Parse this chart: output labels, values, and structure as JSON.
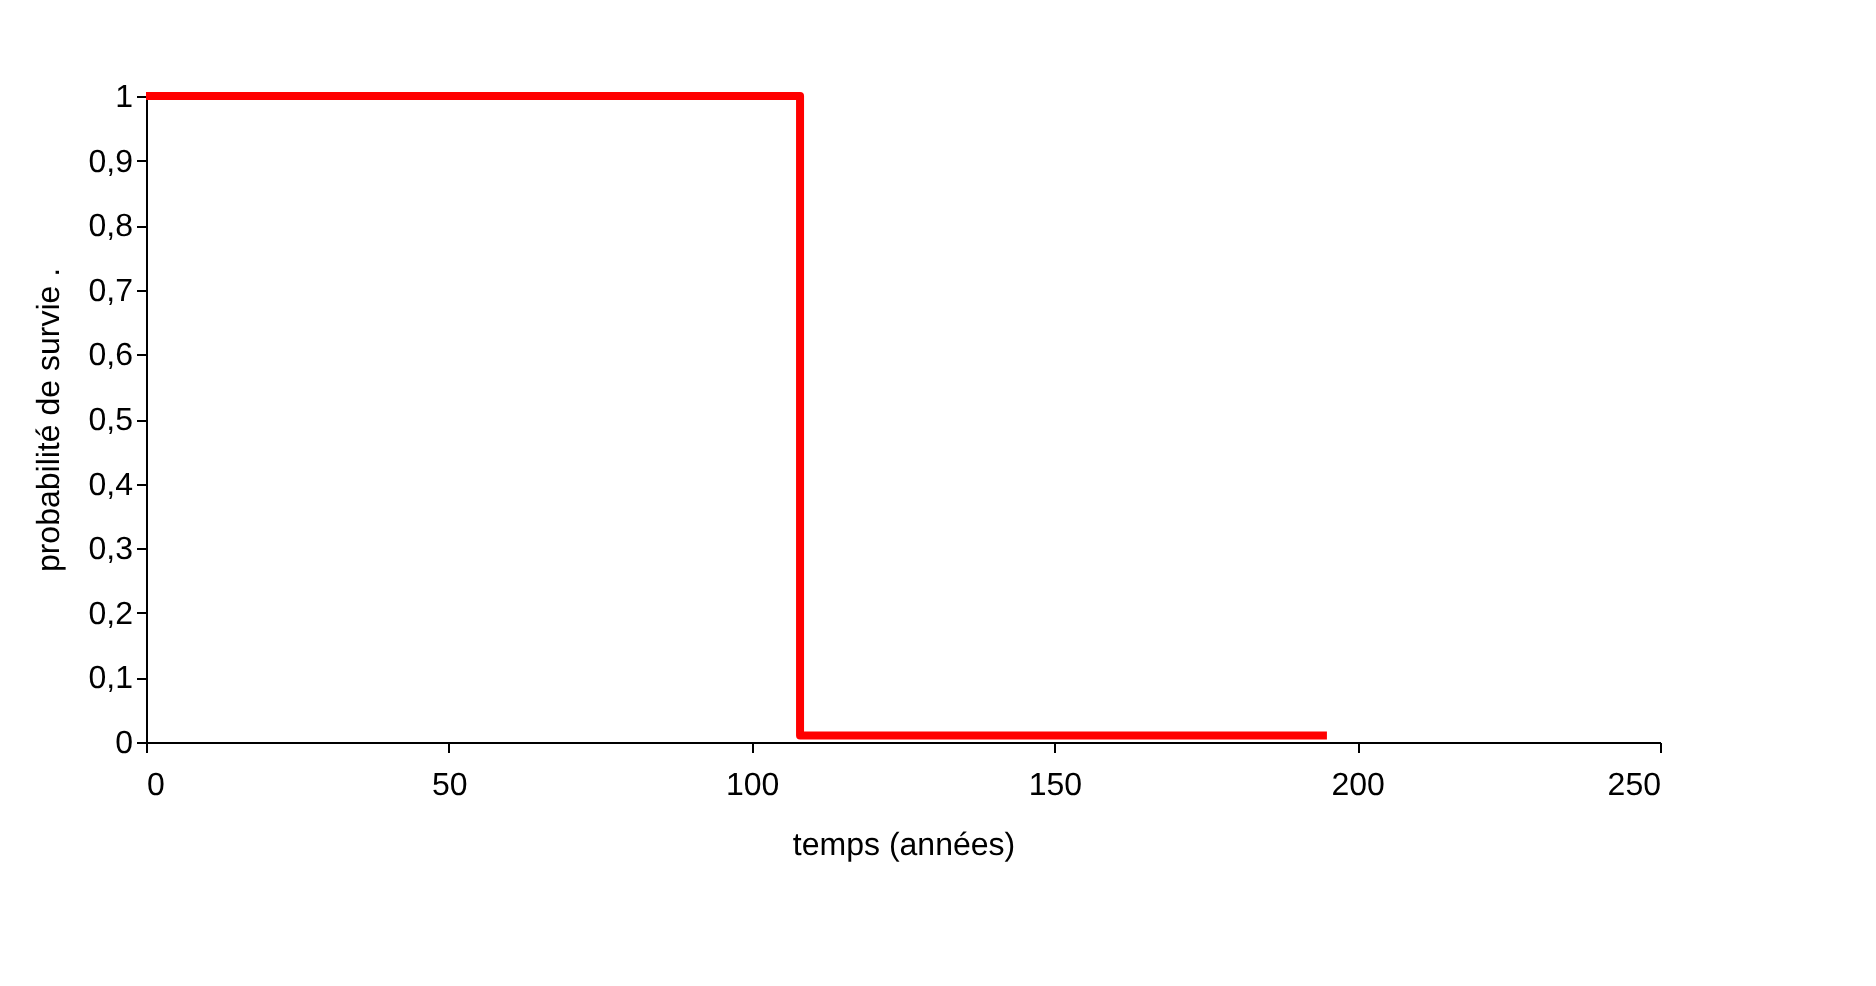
{
  "chart_data": {
    "type": "step",
    "xlabel": "temps (années)",
    "ylabel": "probabilité de survie  .",
    "series": [
      {
        "color": "#ff0000",
        "x": [
          0,
          108,
          195
        ],
        "values": [
          1,
          0.01,
          0.01
        ]
      }
    ],
    "xlim": [
      0,
      250
    ],
    "xticks": [
      0,
      50,
      100,
      150,
      200,
      250
    ],
    "ylim": [
      0,
      1
    ],
    "yticks": [
      0,
      {
        "value": 0.1,
        "label": "0,1"
      },
      {
        "value": 0.2,
        "label": "0,2"
      },
      {
        "value": 0.3,
        "label": "0,3"
      },
      {
        "value": 0.4,
        "label": "0,4"
      },
      {
        "value": 0.5,
        "label": "0,5"
      },
      {
        "value": 0.6,
        "label": "0,6"
      },
      {
        "value": 0.7,
        "label": "0,7"
      },
      {
        "value": 0.8,
        "label": "0,8"
      },
      {
        "value": 0.9,
        "label": "0,9"
      },
      1
    ],
    "grid": false,
    "marker": "none",
    "line_style": "solid"
  }
}
